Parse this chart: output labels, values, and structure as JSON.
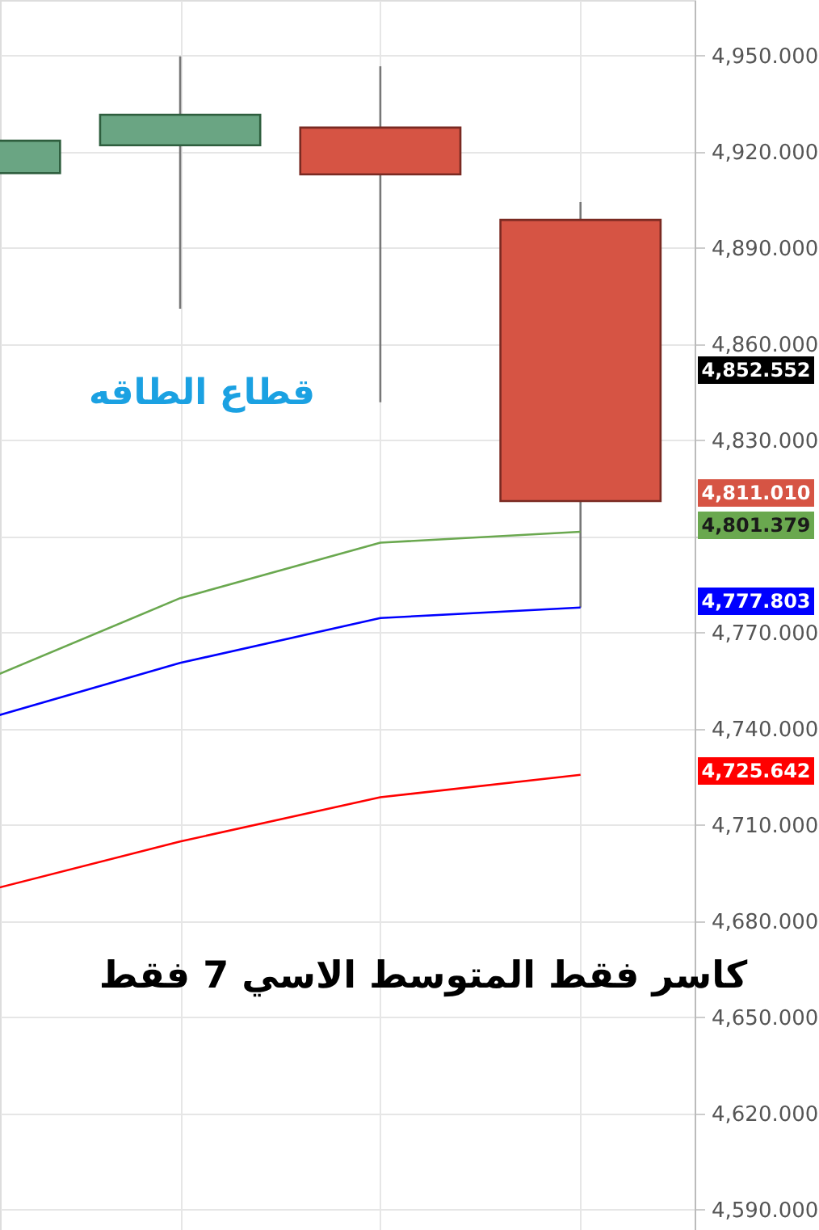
{
  "chart_data": {
    "type": "candlestick",
    "categories": [
      null,
      null,
      null,
      null
    ],
    "ohlc": [
      [
        4913.3,
        4926,
        4908,
        4923.4
      ],
      [
        4922,
        4949.7,
        4871,
        4931.5
      ],
      [
        4927.5,
        4946.6,
        4841.8,
        4912.9
      ],
      [
        4898.7,
        4904.3,
        4777.8,
        4811.01
      ]
    ],
    "colors": [
      "#6aa583",
      "#6aa583",
      "#d65444",
      "#d65444"
    ],
    "series": [
      {
        "type": "line",
        "color": "#6aa84f",
        "values": [
          4754.5,
          4780.7,
          4798,
          4801.4
        ]
      },
      {
        "type": "line",
        "color": "#0000ff",
        "values": [
          4742.5,
          4760.5,
          4774.5,
          4777.8
        ]
      },
      {
        "type": "line",
        "color": "#ff0000",
        "values": [
          4688.9,
          4704.8,
          4718.6,
          4725.6
        ]
      }
    ],
    "ylim": [
      4583.6,
      4967.3
    ],
    "yticks": [
      {
        "value": 4590,
        "label": "4,590.000"
      },
      {
        "value": 4620,
        "label": "4,620.000"
      },
      {
        "value": 4650,
        "label": "4,650.000"
      },
      {
        "value": 4680,
        "label": "4,680.000"
      },
      {
        "value": 4710,
        "label": "4,710.000"
      },
      {
        "value": 4740,
        "label": "4,740.000"
      },
      {
        "value": 4770,
        "label": "4,770.000"
      },
      {
        "value": 4800,
        "label": null
      },
      {
        "value": 4830,
        "label": "4,830.000"
      },
      {
        "value": 4860,
        "label": "4,860.000"
      },
      {
        "value": 4890,
        "label": "4,890.000"
      },
      {
        "value": 4920,
        "label": "4,920.000"
      },
      {
        "value": 4950,
        "label": "4,950.000"
      }
    ],
    "grid": true,
    "tick_labels": "y",
    "annotations": [
      "قطاع الطاقه",
      "كاسر فقط المتوسط الاسي 7  فقط",
      "4,852.552",
      "4,811.010",
      "4,801.379",
      "4,777.803",
      "4,725.642"
    ]
  }
}
